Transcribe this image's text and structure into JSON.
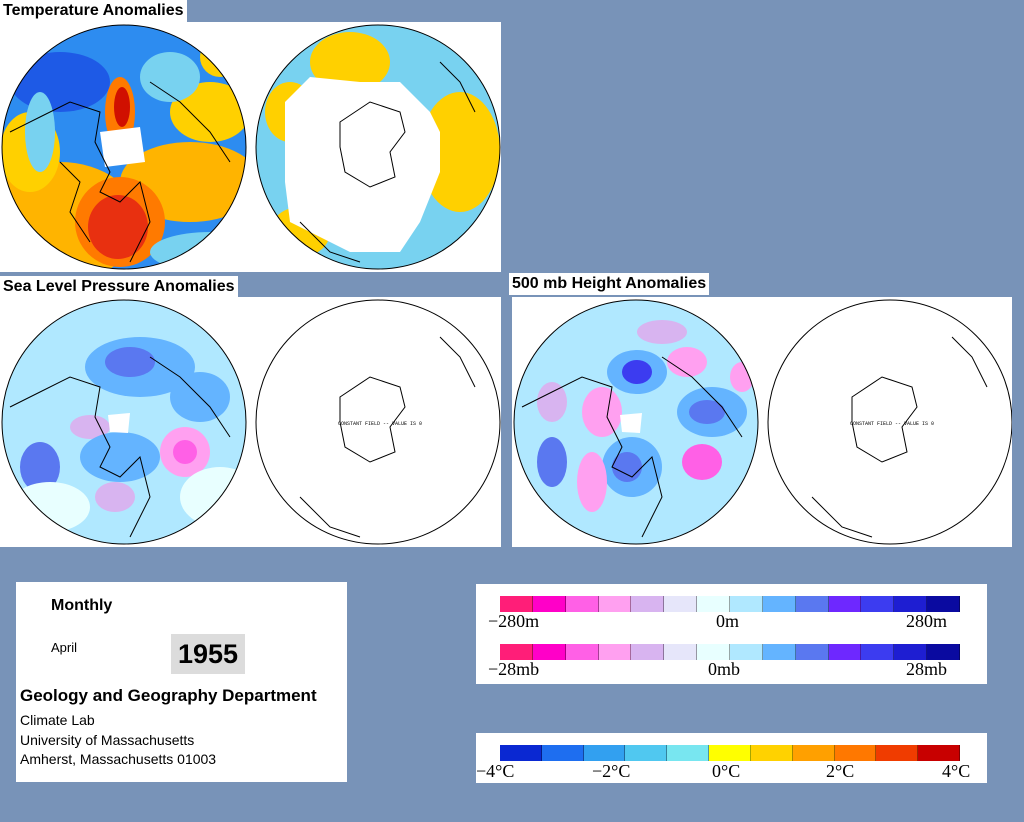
{
  "titles": {
    "temperature": "Temperature Anomalies",
    "slp": "Sea Level Pressure Anomalies",
    "height500": "500 mb Height Anomalies"
  },
  "map_notes": {
    "slp_south": "CONSTANT FIELD -- VALUE IS 0",
    "height_south": "CONSTANT FIELD -- VALUE IS 0"
  },
  "info": {
    "period": "Monthly",
    "month": "April",
    "year": "1955",
    "department": "Geology and Geography Department",
    "line1": "Climate Lab",
    "line2": "University of Massachusetts",
    "line3": "Amherst, Massachusetts 01003"
  },
  "height_scale": {
    "left": "−280m",
    "mid": "0m",
    "right": "280m"
  },
  "pressure_scale": {
    "left": "−28mb",
    "mid": "0mb",
    "right": "28mb"
  },
  "temp_scale": {
    "t1": "−4°C",
    "t2": "−2°C",
    "t3": "0°C",
    "t4": "2°C",
    "t5": "4°C"
  },
  "colors": {
    "anomaly_bins": [
      "#ff1e78",
      "#ff00c8",
      "#ff60e6",
      "#ffa0f0",
      "#d8b4f0",
      "#e6e6fa",
      "#e8ffff",
      "#b0e8ff",
      "#64b4ff",
      "#5a78f0",
      "#6e28ff",
      "#3c3cf0",
      "#1e1ed2",
      "#0a0aa0"
    ],
    "temp_bins": [
      "#0a28d2",
      "#1e6ef0",
      "#32a0f0",
      "#50c8f0",
      "#78e6f0",
      "#ffff00",
      "#ffd200",
      "#ffa000",
      "#ff7800",
      "#f03c00",
      "#c80000"
    ]
  }
}
